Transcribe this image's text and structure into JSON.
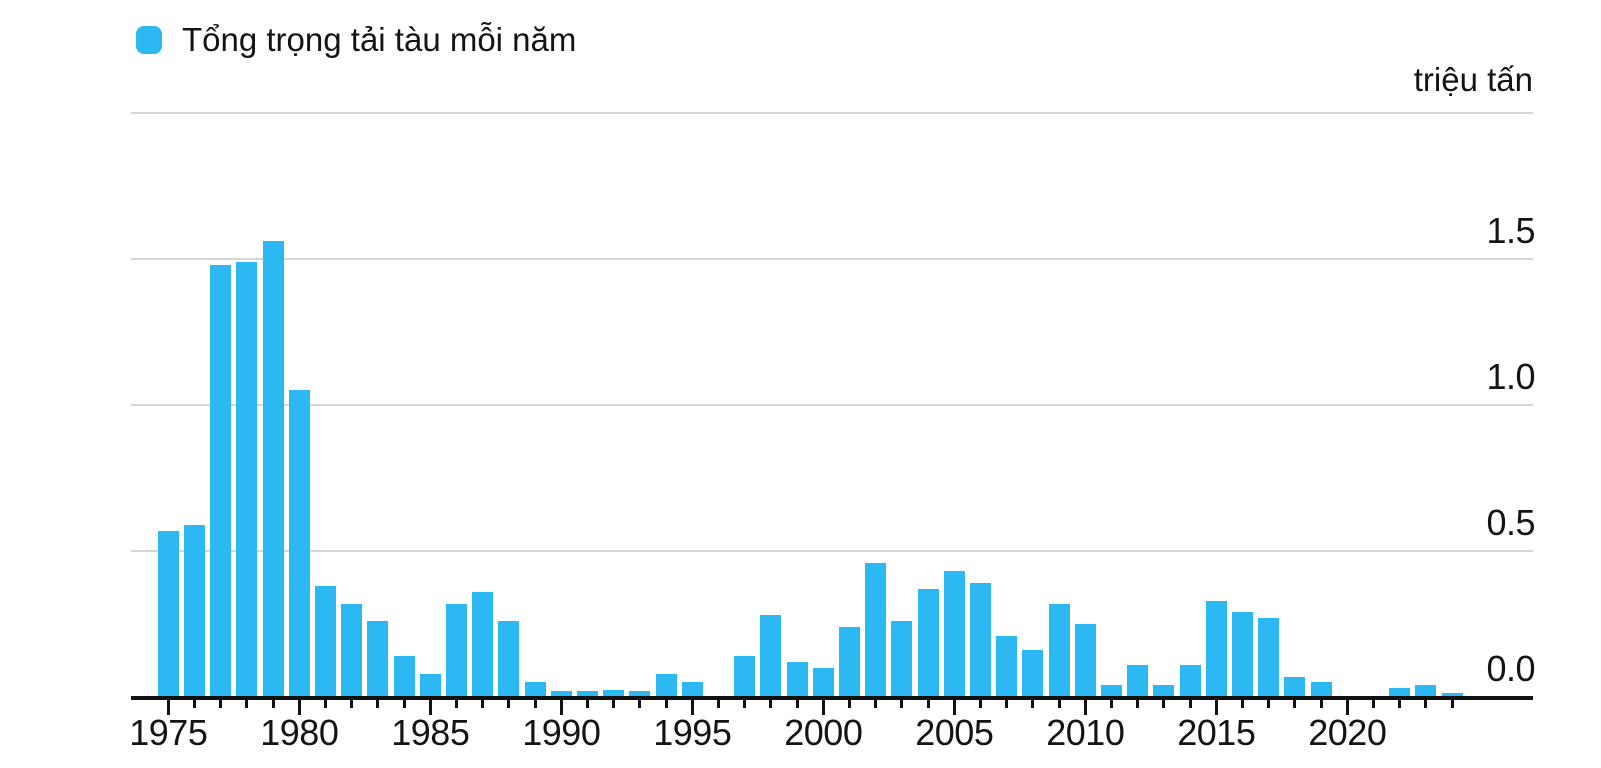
{
  "legend": {
    "label": "Tổng trọng tải tàu mỗi năm"
  },
  "colors": {
    "bar": "#2CB9F3",
    "gridline": "#D6D6D6",
    "axis": "#111111",
    "text": "#141414"
  },
  "chart_data": {
    "type": "bar",
    "legend_entries": [
      "Tổng trọng tải tàu mỗi năm"
    ],
    "ylabel": "triệu tấn",
    "ylim": [
      0,
      2.0
    ],
    "ytick_labels": [
      "0.0",
      "0.5",
      "1.0",
      "1.5"
    ],
    "ytick_values": [
      0,
      0.5,
      1.0,
      1.5
    ],
    "grid_values": [
      0.5,
      1.0,
      1.5,
      2.0
    ],
    "grid": true,
    "legend_position": "top-left",
    "y_axis_side": "right",
    "xticks": [
      1975,
      1980,
      1985,
      1990,
      1995,
      2000,
      2005,
      2010,
      2015,
      2020
    ],
    "years": [
      1975,
      1976,
      1977,
      1978,
      1979,
      1980,
      1981,
      1982,
      1983,
      1984,
      1985,
      1986,
      1987,
      1988,
      1989,
      1990,
      1991,
      1992,
      1993,
      1994,
      1995,
      1996,
      1997,
      1998,
      1999,
      2000,
      2001,
      2002,
      2003,
      2004,
      2005,
      2006,
      2007,
      2008,
      2009,
      2010,
      2011,
      2012,
      2013,
      2014,
      2015,
      2016,
      2017,
      2018,
      2019,
      2020,
      2021,
      2022,
      2023,
      2024
    ],
    "values": [
      0.57,
      0.59,
      1.48,
      1.49,
      1.56,
      1.05,
      0.38,
      0.32,
      0.26,
      0.14,
      0.08,
      0.32,
      0.36,
      0.26,
      0.05,
      0.02,
      0.02,
      0.025,
      0.02,
      0.08,
      0.05,
      0,
      0.14,
      0.28,
      0.12,
      0.1,
      0.24,
      0.46,
      0.26,
      0.37,
      0.43,
      0.39,
      0.21,
      0.16,
      0.32,
      0.25,
      0.04,
      0.11,
      0.04,
      0.11,
      0.33,
      0.29,
      0.27,
      0.07,
      0.05,
      0,
      0,
      0.03,
      0.04,
      0.015
    ]
  }
}
